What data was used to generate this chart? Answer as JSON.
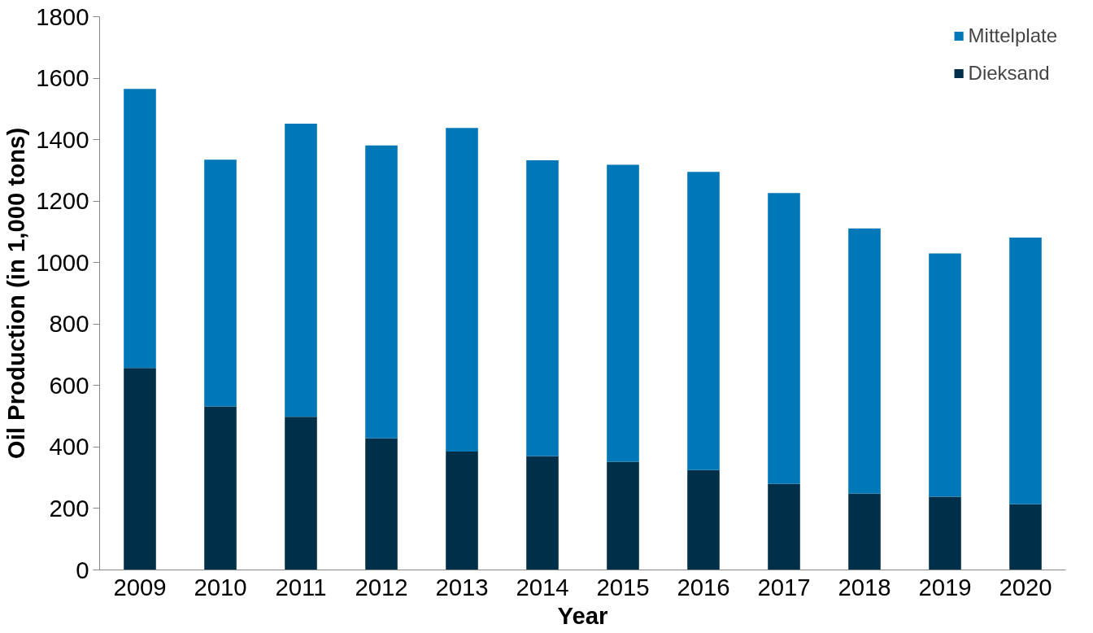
{
  "chart_data": {
    "type": "bar",
    "stacked": true,
    "xlabel": "Year",
    "ylabel": "Oil Production (in 1,000 tons)",
    "categories": [
      "2009",
      "2010",
      "2011",
      "2012",
      "2013",
      "2014",
      "2015",
      "2016",
      "2017",
      "2018",
      "2019",
      "2020"
    ],
    "series": [
      {
        "name": "Dieksand",
        "color": "#003049",
        "values": [
          657,
          532,
          498,
          428,
          385,
          370,
          352,
          325,
          280,
          248,
          238,
          214
        ]
      },
      {
        "name": "Mittelplate",
        "color": "#0077b6",
        "values": [
          908,
          803,
          954,
          953,
          1053,
          963,
          966,
          970,
          946,
          863,
          792,
          867
        ]
      }
    ],
    "ylim": [
      0,
      1800
    ],
    "yticks": [
      0,
      200,
      400,
      600,
      800,
      1000,
      1200,
      1400,
      1600,
      1800
    ],
    "grid": false,
    "legend": "top right"
  }
}
